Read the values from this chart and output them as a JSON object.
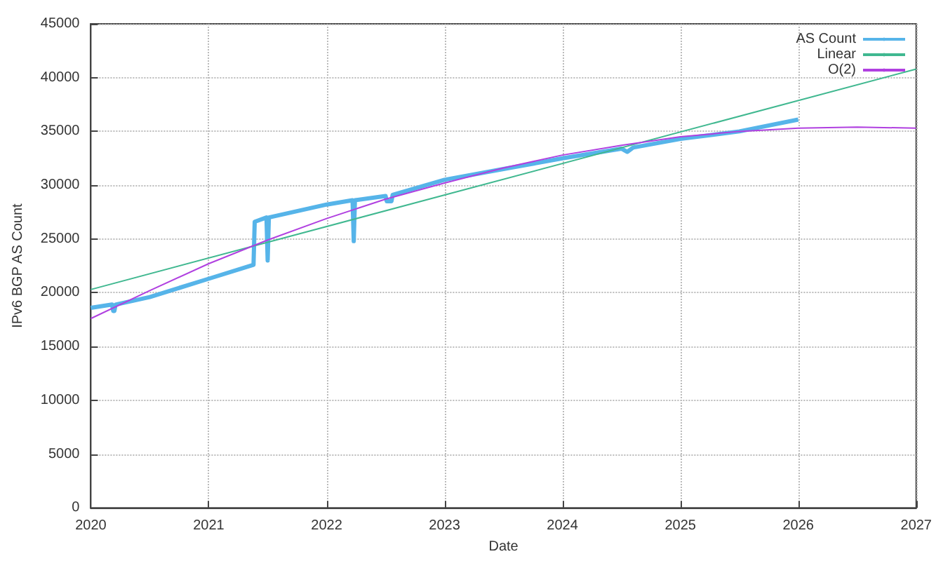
{
  "chart_data": {
    "type": "line",
    "xlabel": "Date",
    "ylabel": "IPv6 BGP AS Count",
    "xlim": [
      2020,
      2027
    ],
    "xticks": [
      2020,
      2021,
      2022,
      2023,
      2024,
      2025,
      2026,
      2027
    ],
    "ylim": [
      0,
      45000
    ],
    "yticks": [
      0,
      5000,
      10000,
      15000,
      20000,
      25000,
      30000,
      35000,
      40000,
      45000
    ],
    "grid": true,
    "legend": "top right",
    "marker": "none",
    "line_style": "solid",
    "series": [
      {
        "name": "AS Count",
        "color": "#56b4e9",
        "x": [
          2020,
          2020.18,
          2020.19,
          2020.2,
          2020.21,
          2020.5,
          2021,
          2021.38,
          2021.39,
          2021.49,
          2021.5,
          2021.51,
          2022,
          2022.22,
          2022.23,
          2022.24,
          2022.5,
          2022.51,
          2022.55,
          2022.56,
          2023,
          2023.5,
          2024,
          2024.5,
          2024.55,
          2024.6,
          2025,
          2025.5,
          2026
        ],
        "values": [
          18600,
          18900,
          18300,
          18300,
          18900,
          19600,
          21300,
          22600,
          26600,
          27000,
          23000,
          27000,
          28200,
          28600,
          24800,
          28600,
          29000,
          28500,
          28500,
          29100,
          30500,
          31500,
          32500,
          33400,
          33100,
          33500,
          34300,
          35000,
          36100
        ]
      },
      {
        "name": "Linear",
        "color": "#40b890",
        "x": [
          2020,
          2027
        ],
        "values": [
          20300,
          40800
        ]
      },
      {
        "name": "O(2)",
        "color": "#b040e0",
        "x": [
          2020,
          2020.5,
          2021,
          2021.5,
          2022,
          2022.5,
          2023,
          2023.5,
          2024,
          2024.5,
          2025,
          2025.5,
          2026,
          2026.5,
          2027
        ],
        "values": [
          17600,
          20200,
          22700,
          24900,
          26900,
          28700,
          30200,
          31600,
          32800,
          33700,
          34500,
          35000,
          35300,
          35400,
          35300
        ]
      }
    ]
  }
}
